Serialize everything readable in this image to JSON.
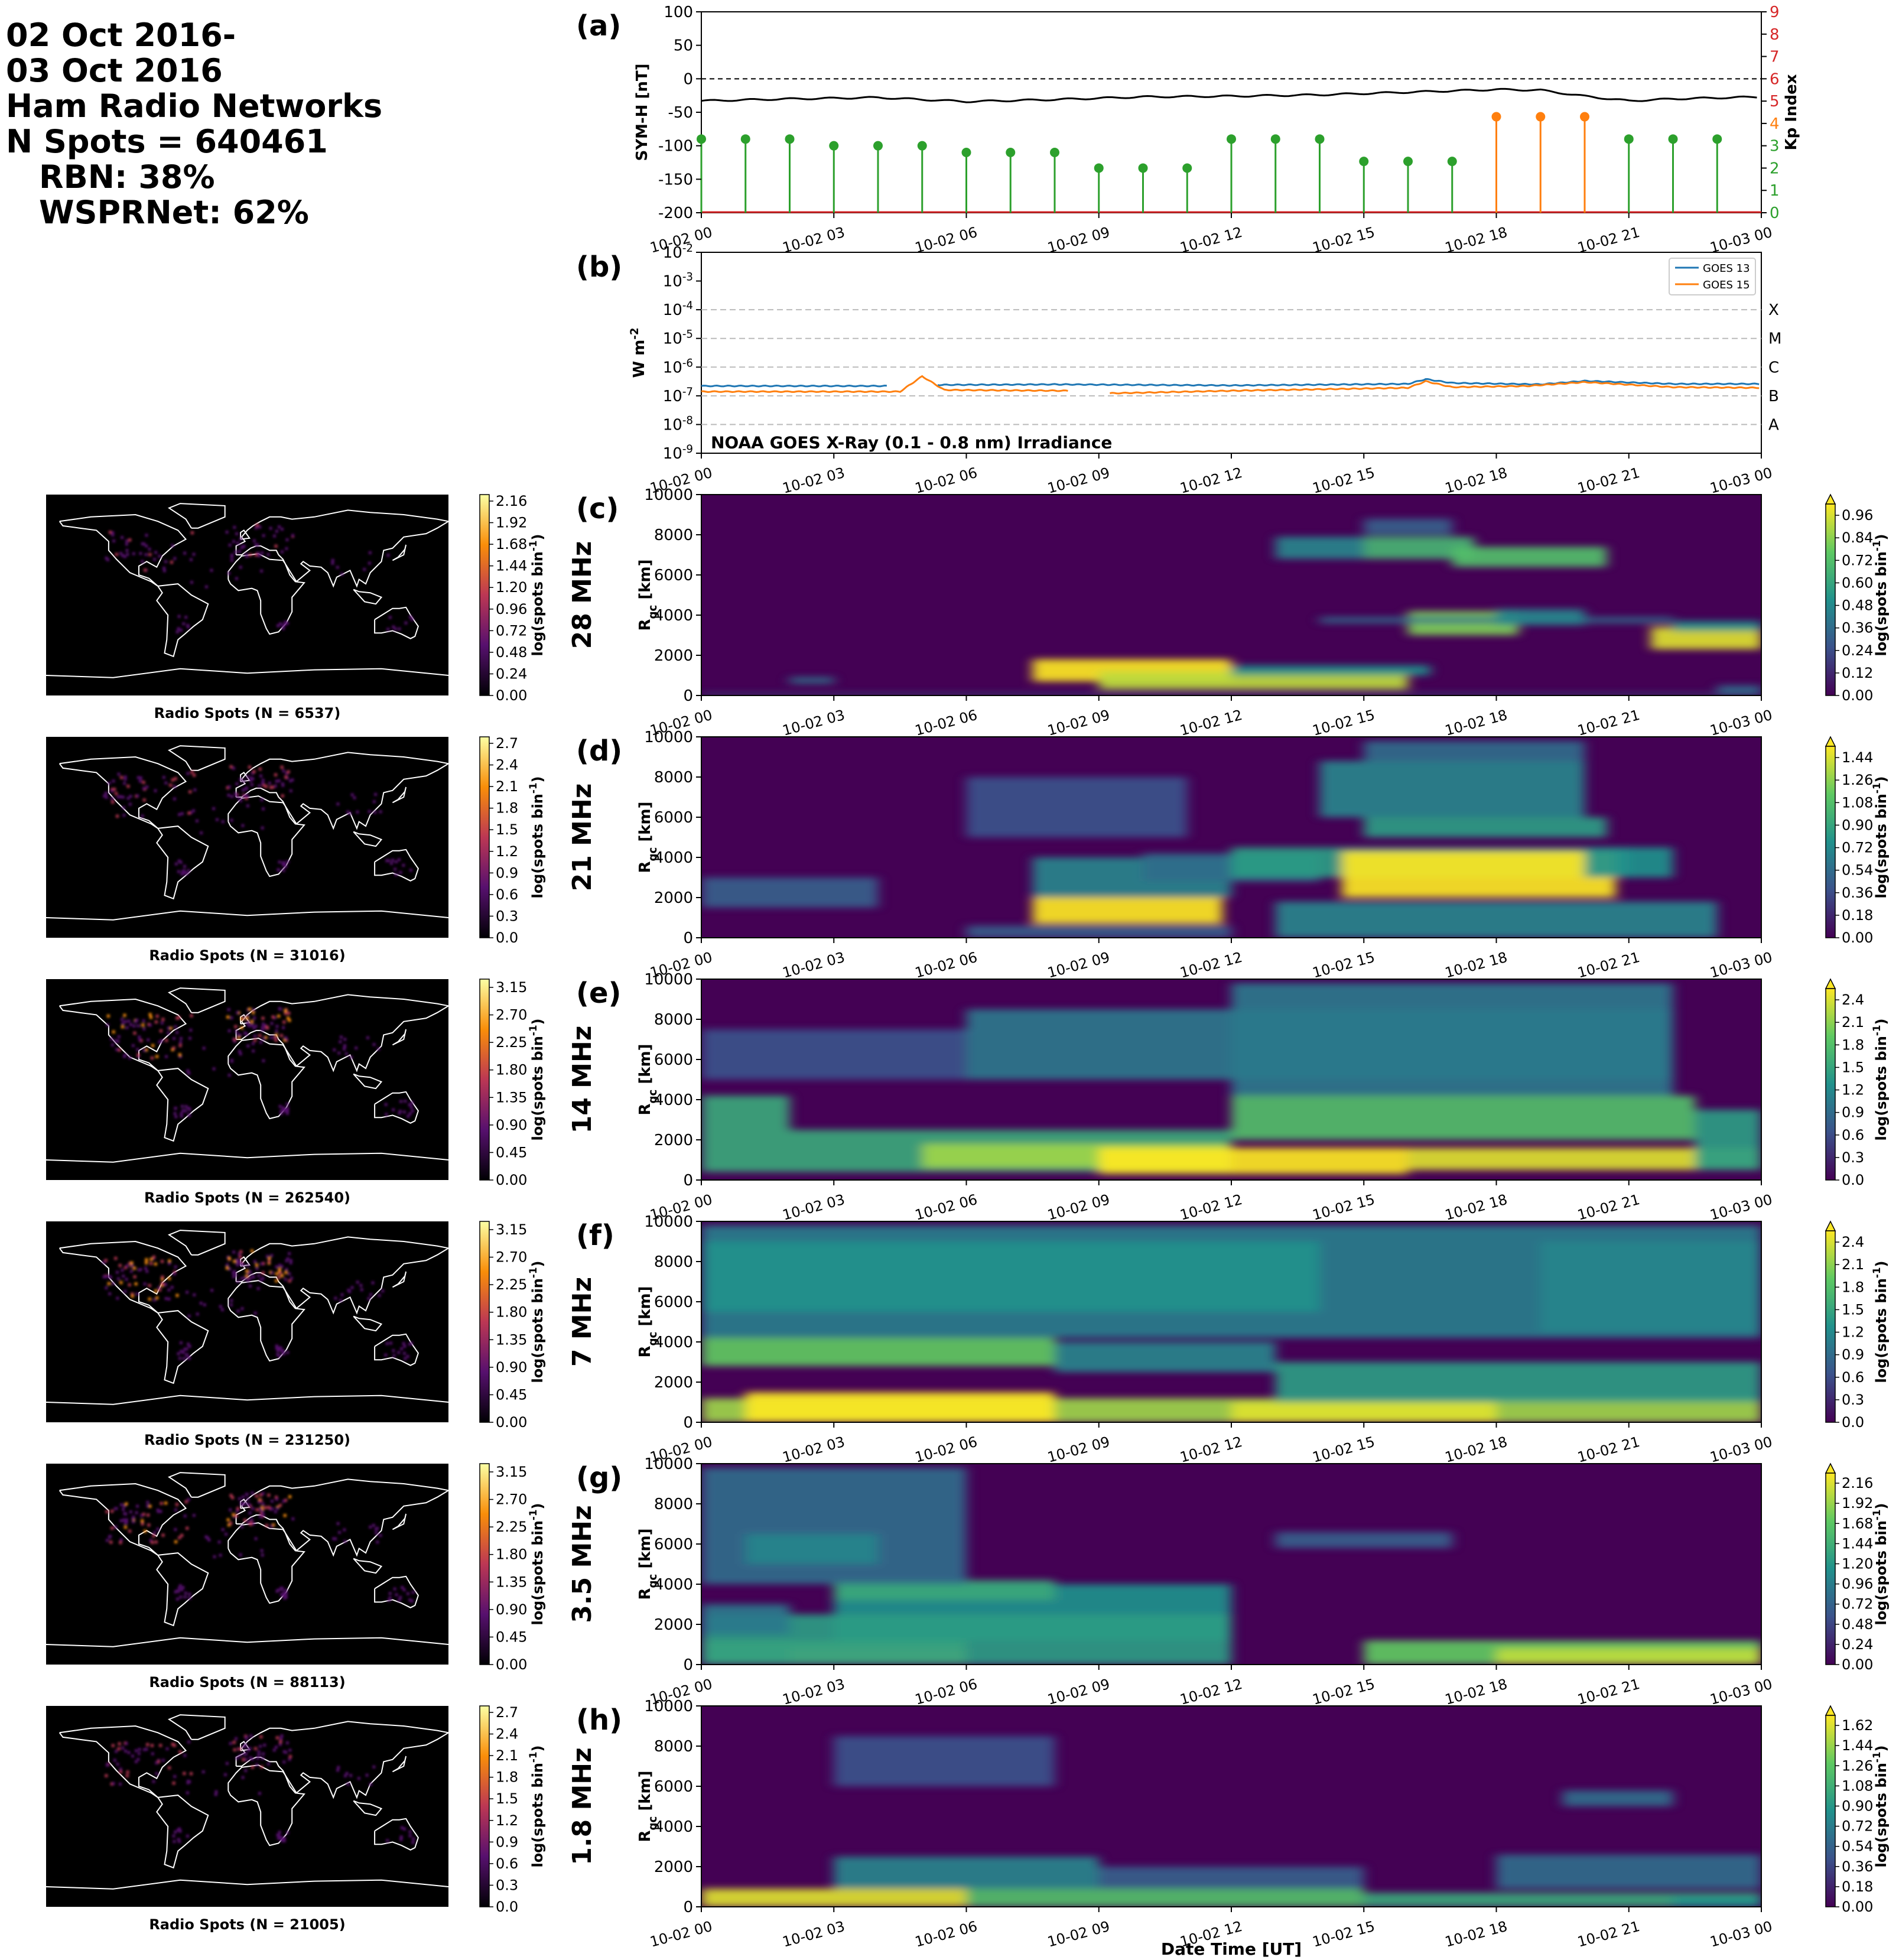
{
  "header": {
    "line1": "02 Oct 2016-",
    "line2": "03 Oct 2016",
    "line3": "Ham Radio Networks",
    "line4": "N Spots = 640461",
    "line5": "RBN: 38%",
    "line6": "WSPRNet: 62%"
  },
  "time_ticks": [
    "10-02 00",
    "10-02 03",
    "10-02 06",
    "10-02 09",
    "10-02 12",
    "10-02 15",
    "10-02 18",
    "10-02 21",
    "10-03 00"
  ],
  "colors": {
    "symh": "#000000",
    "kp_green": "#2ca02c",
    "kp_orange": "#ff7f0e",
    "goes13": "#1f77b4",
    "goes15": "#ff7f0e",
    "kp_axis": "#d62728"
  },
  "chart_data": [
    {
      "type": "line",
      "panel": "(a)",
      "ylabel": "SYM-H [nT]",
      "ylabel_right": "Kp Index",
      "ylim": [
        -200,
        100
      ],
      "y_ticks": [
        "100",
        "50",
        "0",
        "-50",
        "-100",
        "-150",
        "-200"
      ],
      "ylim_right": [
        0,
        9
      ],
      "y_ticks_right": [
        "9",
        "8",
        "7",
        "6",
        "5",
        "4",
        "3",
        "2",
        "1",
        "0"
      ],
      "series": [
        {
          "type": "line",
          "x_hours": [
            0,
            2,
            4,
            6,
            8,
            10,
            12,
            14,
            16,
            18,
            19,
            20,
            21,
            22,
            24
          ],
          "values": [
            -33,
            -30,
            -28,
            -34,
            -31,
            -27,
            -26,
            -24,
            -20,
            -16,
            -17,
            -26,
            -33,
            -30,
            -27
          ]
        },
        {
          "type": "stem",
          "x_hours": [
            0,
            1,
            2,
            3,
            4,
            5,
            6,
            7,
            8,
            9,
            10,
            11,
            12,
            13,
            14,
            15,
            16,
            17,
            18,
            19,
            20,
            21,
            22,
            23
          ],
          "values": [
            3.3,
            3.3,
            3.3,
            3.0,
            3.0,
            3.0,
            2.7,
            2.7,
            2.7,
            2.0,
            2.0,
            2.0,
            3.3,
            3.3,
            3.3,
            2.3,
            2.3,
            2.3,
            4.3,
            4.3,
            4.3,
            3.3,
            3.3,
            3.3
          ]
        }
      ]
    },
    {
      "type": "line",
      "panel": "(b)",
      "ylabel": "W m^-2",
      "yscale": "log",
      "ylim": [
        1e-09,
        0.01
      ],
      "y_ticks": [
        "10^-2",
        "10^-3",
        "10^-4",
        "10^-5",
        "10^-6",
        "10^-7",
        "10^-8",
        "10^-9"
      ],
      "flare_classes": [
        "X",
        "M",
        "C",
        "B",
        "A"
      ],
      "annotation": "NOAA GOES X-Ray (0.1 - 0.8 nm) Irradiance",
      "legend": [
        "GOES 13",
        "GOES 15"
      ],
      "legend_position": "top-right",
      "series": [
        {
          "name": "GOES 13",
          "x_hours": [
            0,
            4.2,
            5.3,
            8,
            12,
            16,
            16.4,
            17,
            19,
            20,
            22,
            24
          ],
          "values": [
            2.2e-07,
            2.2e-07,
            2.4e-07,
            2.5e-07,
            2.3e-07,
            2.6e-07,
            3.8e-07,
            2.8e-07,
            2.5e-07,
            3.3e-07,
            2.6e-07,
            2.6e-07
          ],
          "gap_hours": [
            4.2,
            5.3
          ]
        },
        {
          "name": "GOES 15",
          "x_hours": [
            0,
            4.5,
            5,
            5.5,
            8.3,
            9,
            12,
            16,
            16.4,
            17,
            18.7,
            20,
            22,
            24
          ],
          "values": [
            1.4e-07,
            1.4e-07,
            4.8e-07,
            1.6e-07,
            1.5e-07,
            1.2e-07,
            1.5e-07,
            1.9e-07,
            3.2e-07,
            2e-07,
            2.2e-07,
            3e-07,
            2e-07,
            1.9e-07
          ],
          "gap_hours": [
            8.3,
            9.2
          ]
        }
      ]
    },
    {
      "type": "heatmap",
      "panel": "(c)",
      "band": "28 MHz",
      "ylabel": "R_gc [km]",
      "ylim": [
        0,
        10000
      ],
      "y_ticks": [
        "0",
        "2000",
        "4000",
        "6000",
        "8000",
        "10000"
      ],
      "cbar_label": "log(spots bin^-1)",
      "cbar_ticks": [
        "0.96",
        "0.84",
        "0.72",
        "0.60",
        "0.48",
        "0.36",
        "0.24",
        "0.12",
        "0.00"
      ],
      "map_cbar_ticks": [
        "2.16",
        "1.92",
        "1.68",
        "1.44",
        "1.20",
        "0.96",
        "0.72",
        "0.48",
        "0.24",
        "0.00"
      ],
      "map_label": "Radio Spots (N = 6537)"
    },
    {
      "type": "heatmap",
      "panel": "(d)",
      "band": "21 MHz",
      "ylabel": "R_gc [km]",
      "ylim": [
        0,
        10000
      ],
      "y_ticks": [
        "0",
        "2000",
        "4000",
        "6000",
        "8000",
        "10000"
      ],
      "cbar_label": "log(spots bin^-1)",
      "cbar_ticks": [
        "1.44",
        "1.26",
        "1.08",
        "0.90",
        "0.72",
        "0.54",
        "0.36",
        "0.18",
        "0.00"
      ],
      "map_cbar_ticks": [
        "2.7",
        "2.4",
        "2.1",
        "1.8",
        "1.5",
        "1.2",
        "0.9",
        "0.6",
        "0.3",
        "0.0"
      ],
      "map_label": "Radio Spots (N = 31016)"
    },
    {
      "type": "heatmap",
      "panel": "(e)",
      "band": "14 MHz",
      "ylabel": "R_gc [km]",
      "ylim": [
        0,
        10000
      ],
      "y_ticks": [
        "0",
        "2000",
        "4000",
        "6000",
        "8000",
        "10000"
      ],
      "cbar_label": "log(spots bin^-1)",
      "cbar_ticks": [
        "2.4",
        "2.1",
        "1.8",
        "1.5",
        "1.2",
        "0.9",
        "0.6",
        "0.3",
        "0.0"
      ],
      "map_cbar_ticks": [
        "3.15",
        "2.70",
        "2.25",
        "1.80",
        "1.35",
        "0.90",
        "0.45",
        "0.00"
      ],
      "map_label": "Radio Spots (N = 262540)"
    },
    {
      "type": "heatmap",
      "panel": "(f)",
      "band": "7 MHz",
      "ylabel": "R_gc [km]",
      "ylim": [
        0,
        10000
      ],
      "y_ticks": [
        "0",
        "2000",
        "4000",
        "6000",
        "8000",
        "10000"
      ],
      "cbar_label": "log(spots bin^-1)",
      "cbar_ticks": [
        "2.4",
        "2.1",
        "1.8",
        "1.5",
        "1.2",
        "0.9",
        "0.6",
        "0.3",
        "0.0"
      ],
      "map_cbar_ticks": [
        "3.15",
        "2.70",
        "2.25",
        "1.80",
        "1.35",
        "0.90",
        "0.45",
        "0.00"
      ],
      "map_label": "Radio Spots (N = 231250)"
    },
    {
      "type": "heatmap",
      "panel": "(g)",
      "band": "3.5 MHz",
      "ylabel": "R_gc [km]",
      "ylim": [
        0,
        10000
      ],
      "y_ticks": [
        "0",
        "2000",
        "4000",
        "6000",
        "8000",
        "10000"
      ],
      "cbar_label": "log(spots bin^-1)",
      "cbar_ticks": [
        "2.16",
        "1.92",
        "1.68",
        "1.44",
        "1.20",
        "0.96",
        "0.72",
        "0.48",
        "0.24",
        "0.00"
      ],
      "map_cbar_ticks": [
        "3.15",
        "2.70",
        "2.25",
        "1.80",
        "1.35",
        "0.90",
        "0.45",
        "0.00"
      ],
      "map_label": "Radio Spots (N = 88113)"
    },
    {
      "type": "heatmap",
      "panel": "(h)",
      "band": "1.8 MHz",
      "ylabel": "R_gc [km]",
      "ylim": [
        0,
        10000
      ],
      "y_ticks": [
        "0",
        "2000",
        "4000",
        "6000",
        "8000",
        "10000"
      ],
      "cbar_label": "log(spots bin^-1)",
      "cbar_ticks": [
        "1.62",
        "1.44",
        "1.26",
        "1.08",
        "0.90",
        "0.72",
        "0.54",
        "0.36",
        "0.18",
        "0.00"
      ],
      "map_cbar_ticks": [
        "2.7",
        "2.4",
        "2.1",
        "1.8",
        "1.5",
        "1.2",
        "0.9",
        "0.6",
        "0.3",
        "0.0"
      ],
      "map_label": "Radio Spots (N = 21005)",
      "xlabel": "Date Time [UT]"
    }
  ]
}
